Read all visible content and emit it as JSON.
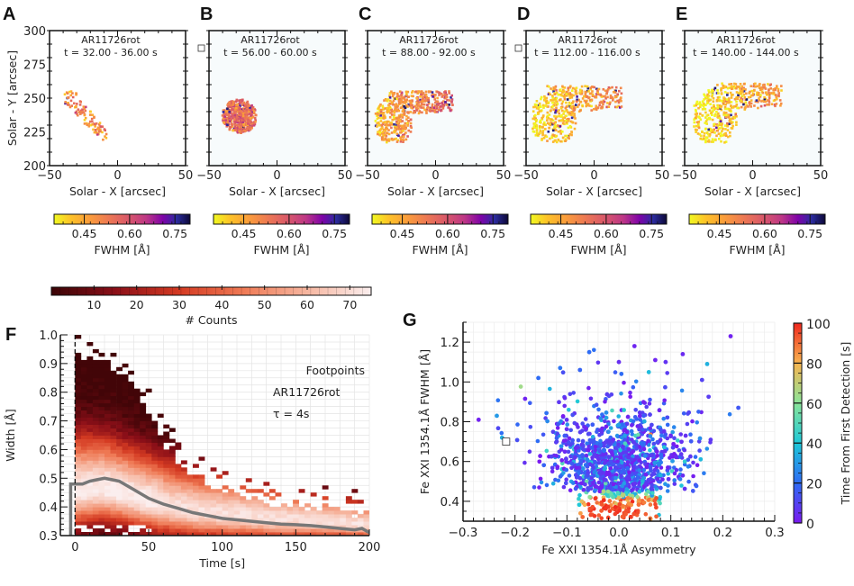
{
  "chart_data": [
    {
      "type": "heatmap",
      "panel": "A",
      "annotation": [
        "AR11726rot",
        "t = 32.00 - 36.00 s"
      ],
      "xlabel": "Solar - X [arcsec]",
      "ylabel": "Solar - Y [arcsec]",
      "xlim": [
        -50,
        50
      ],
      "ylim": [
        200,
        300
      ],
      "xticks": [
        "−50",
        "0",
        "50"
      ],
      "yticks": [
        "200",
        "225",
        "250",
        "275",
        "300"
      ],
      "colorbar": {
        "label": "FWHM [Å]",
        "ticks": [
          "0.45",
          "0.60",
          "0.75"
        ],
        "range": [
          0.35,
          0.8
        ],
        "colormap": "plasma-reversed"
      },
      "region": {
        "shape": "narrow diagonal streak",
        "x_range": [
          -40,
          -8
        ],
        "y_range": [
          220,
          256
        ],
        "dominant_fwhm": 0.5
      }
    },
    {
      "type": "heatmap",
      "panel": "B",
      "annotation": [
        "AR11726rot",
        "t = 56.00 - 60.00 s"
      ],
      "xlabel": "Solar - X [arcsec]",
      "xlim": [
        -50,
        50
      ],
      "ylim": [
        200,
        300
      ],
      "xticks": [
        "−50",
        "0",
        "50"
      ],
      "colorbar": {
        "label": "FWHM [Å]",
        "ticks": [
          "0.45",
          "0.60",
          "0.75"
        ],
        "range": [
          0.35,
          0.8
        ],
        "colormap": "plasma-reversed"
      },
      "region": {
        "shape": "elongated blob",
        "x_range": [
          -42,
          -15
        ],
        "y_range": [
          220,
          255
        ],
        "dominant_fwhm": 0.55
      }
    },
    {
      "type": "heatmap",
      "panel": "C",
      "annotation": [
        "AR11726rot",
        "t = 88.00 - 92.00 s"
      ],
      "xlabel": "Solar - X [arcsec]",
      "xlim": [
        -50,
        50
      ],
      "ylim": [
        200,
        300
      ],
      "xticks": [
        "−50",
        "0",
        "50"
      ],
      "colorbar": {
        "label": "FWHM [Å]",
        "ticks": [
          "0.45",
          "0.60",
          "0.75"
        ],
        "range": [
          0.35,
          0.8
        ],
        "colormap": "plasma-reversed"
      },
      "region": {
        "shape": "blob with eastward arm",
        "x_range": [
          -45,
          15
        ],
        "y_range": [
          218,
          258
        ],
        "dominant_fwhm": 0.47
      }
    },
    {
      "type": "heatmap",
      "panel": "D",
      "annotation": [
        "AR11726rot",
        "t = 112.00 - 116.00 s"
      ],
      "xlabel": "Solar - X [arcsec]",
      "xlim": [
        -50,
        50
      ],
      "ylim": [
        200,
        300
      ],
      "xticks": [
        "−50",
        "0",
        "50"
      ],
      "colorbar": {
        "label": "FWHM [Å]",
        "ticks": [
          "0.45",
          "0.60",
          "0.75"
        ],
        "range": [
          0.35,
          0.8
        ],
        "colormap": "plasma-reversed"
      },
      "region": {
        "shape": "hook-shaped ribbon",
        "x_range": [
          -46,
          25
        ],
        "y_range": [
          218,
          262
        ],
        "dominant_fwhm": 0.42
      }
    },
    {
      "type": "heatmap",
      "panel": "E",
      "annotation": [
        "AR11726rot",
        "t = 140.00 - 144.00 s"
      ],
      "xlabel": "Solar - X [arcsec]",
      "xlim": [
        -50,
        50
      ],
      "ylim": [
        200,
        300
      ],
      "xticks": [
        "−50",
        "0",
        "50"
      ],
      "colorbar": {
        "label": "FWHM [Å]",
        "ticks": [
          "0.45",
          "0.60",
          "0.75"
        ],
        "range": [
          0.35,
          0.8
        ],
        "colormap": "plasma-reversed"
      },
      "region": {
        "shape": "hook-shaped ribbon",
        "x_range": [
          -44,
          26
        ],
        "y_range": [
          218,
          264
        ],
        "dominant_fwhm": 0.4
      }
    },
    {
      "type": "heatmap",
      "panel": "F",
      "annotation": [
        "Footpoints",
        "AR11726rot",
        "τ = 4s"
      ],
      "xlabel": "Time [s]",
      "ylabel": "Width [Å]",
      "xlim": [
        -10,
        200
      ],
      "ylim": [
        0.3,
        1.0
      ],
      "xticks": [
        "0",
        "50",
        "100",
        "150",
        "200"
      ],
      "yticks": [
        "0.3",
        "0.4",
        "0.5",
        "0.6",
        "0.7",
        "0.8",
        "0.9",
        "1.0"
      ],
      "colorbar": {
        "label": "# Counts",
        "ticks": [
          "10",
          "20",
          "30",
          "40",
          "50",
          "60",
          "70"
        ],
        "range": [
          0,
          75
        ],
        "colormap": "reds-dark"
      },
      "median_curve": {
        "x": [
          0,
          5,
          10,
          15,
          20,
          25,
          30,
          40,
          50,
          60,
          70,
          80,
          90,
          100,
          110,
          120,
          130,
          140,
          150,
          160,
          170,
          180,
          190,
          195,
          200
        ],
        "y": [
          0.48,
          0.48,
          0.49,
          0.495,
          0.5,
          0.495,
          0.49,
          0.46,
          0.43,
          0.41,
          0.395,
          0.38,
          0.37,
          0.36,
          0.355,
          0.35,
          0.345,
          0.34,
          0.338,
          0.335,
          0.33,
          0.325,
          0.32,
          0.325,
          0.31
        ]
      },
      "density_envelope": {
        "upper_edge": {
          "x": [
            0,
            20,
            40,
            60,
            80,
            100,
            120,
            140,
            160,
            180,
            200
          ],
          "y": [
            0.92,
            0.9,
            0.82,
            0.62,
            0.5,
            0.45,
            0.42,
            0.4,
            0.39,
            0.38,
            0.37
          ]
        },
        "peak_ridge": {
          "x": [
            0,
            20,
            40,
            60,
            80,
            100,
            120,
            140,
            160,
            180,
            200
          ],
          "y": [
            0.45,
            0.46,
            0.43,
            0.4,
            0.38,
            0.37,
            0.36,
            0.35,
            0.345,
            0.34,
            0.33
          ]
        }
      }
    },
    {
      "type": "scatter",
      "panel": "G",
      "xlabel": "Fe XXI 1354.1Å Asymmetry",
      "ylabel": "Fe XXI 1354.1Å FWHM [Å]",
      "xlim": [
        -0.3,
        0.3
      ],
      "ylim": [
        0.3,
        1.3
      ],
      "xticks": [
        "−0.3",
        "−0.2",
        "−0.1",
        "0.0",
        "0.1",
        "0.2",
        "0.3"
      ],
      "yticks": [
        "0.4",
        "0.6",
        "0.8",
        "1.0",
        "1.2"
      ],
      "grid": true,
      "colorbar": {
        "label": "Time From First Detection [s]",
        "ticks": [
          "0",
          "20",
          "40",
          "60",
          "80",
          "100"
        ],
        "range": [
          0,
          100
        ],
        "colormap": "rainbow"
      },
      "distribution": {
        "core_center_x": 0.0,
        "core_center_y": 0.55,
        "core_spread_x": 0.06,
        "core_spread_y": 0.12,
        "late_points_fwhm_below": 0.42,
        "late_points_time_s": 90,
        "n_points_approx": 2500
      },
      "outliers": [
        {
          "x": -0.27,
          "y": 0.81,
          "t": 2
        },
        {
          "x": 0.215,
          "y": 1.23,
          "t": 2
        },
        {
          "x": 0.03,
          "y": 1.18,
          "t": 3
        },
        {
          "x": 0.123,
          "y": 1.14,
          "t": 4
        },
        {
          "x": -0.057,
          "y": 1.15,
          "t": 20
        },
        {
          "x": 0.0,
          "y": 1.1,
          "t": 5
        },
        {
          "x": 0.07,
          "y": 1.11,
          "t": 3
        },
        {
          "x": 0.09,
          "y": 1.1,
          "t": 6
        },
        {
          "x": -0.113,
          "y": 1.07,
          "t": 22
        },
        {
          "x": -0.075,
          "y": 1.06,
          "t": 18
        },
        {
          "x": 0.17,
          "y": 1.09,
          "t": 35
        },
        {
          "x": 0.23,
          "y": 0.87,
          "t": 15
        },
        {
          "x": -0.155,
          "y": 1.02,
          "t": 20
        },
        {
          "x": 0.16,
          "y": 1.01,
          "t": 10
        },
        {
          "x": -0.235,
          "y": 0.83,
          "t": 30
        },
        {
          "x": -0.225,
          "y": 0.72,
          "t": 35
        }
      ]
    }
  ],
  "figure": {
    "panel_labels": [
      "A",
      "B",
      "C",
      "D",
      "E",
      "F",
      "G"
    ]
  }
}
